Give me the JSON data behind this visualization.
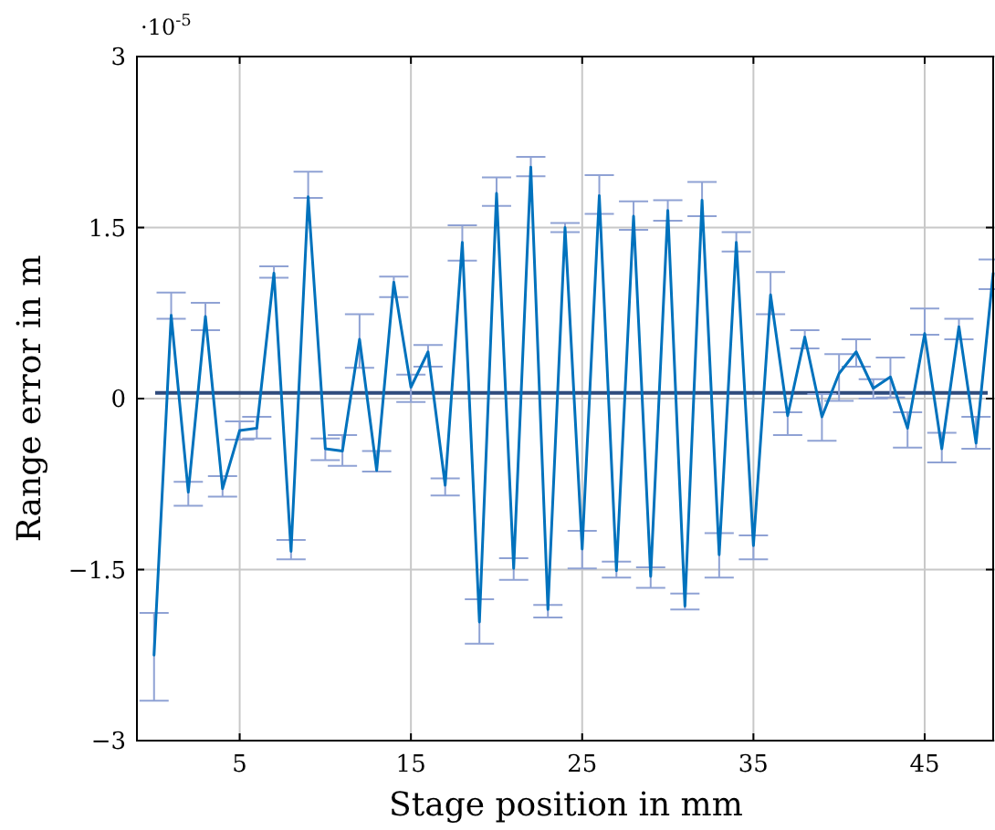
{
  "chart_data": {
    "type": "line",
    "xlabel": "Stage position in mm",
    "ylabel": "Range error in m",
    "annotations": [
      "·10$^{-5}$"
    ],
    "x": [
      0,
      1,
      2,
      3,
      4,
      5,
      6,
      7,
      8,
      9,
      10,
      11,
      12,
      13,
      14,
      15,
      16,
      17,
      18,
      19,
      20,
      21,
      22,
      23,
      24,
      25,
      26,
      27,
      28,
      29,
      30,
      31,
      32,
      33,
      34,
      35,
      36,
      37,
      38,
      39,
      40,
      41,
      42,
      43,
      44,
      45,
      46,
      47,
      48,
      49
    ],
    "series": [
      {
        "color": "#0072bd",
        "values": [
          -2.25,
          0.73,
          -0.82,
          0.72,
          -0.79,
          -0.28,
          -0.26,
          1.1,
          -1.34,
          1.77,
          -0.44,
          -0.46,
          0.52,
          -0.63,
          1.02,
          0.1,
          0.41,
          -0.76,
          1.37,
          -1.96,
          1.8,
          -1.49,
          2.03,
          -1.85,
          1.5,
          -1.32,
          1.78,
          -1.51,
          1.6,
          -1.56,
          1.65,
          -1.82,
          1.74,
          -1.37,
          1.37,
          -1.29,
          0.91,
          -0.15,
          0.54,
          -0.16,
          0.22,
          0.41,
          0.09,
          0.19,
          -0.26,
          0.57,
          -0.44,
          0.63,
          -0.39,
          1.1
        ],
        "errors": [
          [
            -2.65,
            -1.88
          ],
          [
            0.7,
            0.93
          ],
          [
            -0.94,
            -0.73
          ],
          [
            0.6,
            0.84
          ],
          [
            -0.86,
            -0.68
          ],
          [
            -0.36,
            -0.2
          ],
          [
            -0.35,
            -0.16
          ],
          [
            1.06,
            1.16
          ],
          [
            -1.41,
            -1.24
          ],
          [
            1.76,
            1.99
          ],
          [
            -0.54,
            -0.35
          ],
          [
            -0.59,
            -0.32
          ],
          [
            0.27,
            0.74
          ],
          [
            -0.64,
            -0.46
          ],
          [
            0.89,
            1.07
          ],
          [
            -0.03,
            0.21
          ],
          [
            0.28,
            0.47
          ],
          [
            -0.85,
            -0.7
          ],
          [
            1.21,
            1.52
          ],
          [
            -2.15,
            -1.76
          ],
          [
            1.69,
            1.94
          ],
          [
            -1.59,
            -1.4
          ],
          [
            1.95,
            2.12
          ],
          [
            -1.92,
            -1.81
          ],
          [
            1.46,
            1.54
          ],
          [
            -1.49,
            -1.16
          ],
          [
            1.62,
            1.96
          ],
          [
            -1.57,
            -1.43
          ],
          [
            1.48,
            1.73
          ],
          [
            -1.66,
            -1.48
          ],
          [
            1.56,
            1.74
          ],
          [
            -1.85,
            -1.71
          ],
          [
            1.6,
            1.9
          ],
          [
            -1.57,
            -1.18
          ],
          [
            1.29,
            1.46
          ],
          [
            -1.41,
            -1.2
          ],
          [
            0.74,
            1.11
          ],
          [
            -0.32,
            -0.12
          ],
          [
            0.44,
            0.6
          ],
          [
            -0.37,
            0.04
          ],
          [
            -0.02,
            0.39
          ],
          [
            0.28,
            0.52
          ],
          [
            0,
            0.17
          ],
          [
            0.01,
            0.36
          ],
          [
            -0.43,
            -0.12
          ],
          [
            0.56,
            0.79
          ],
          [
            -0.56,
            -0.3
          ],
          [
            0.52,
            0.7
          ],
          [
            -0.44,
            -0.16
          ],
          [
            0.96,
            1.22
          ]
        ]
      }
    ],
    "ref_lines": [
      {
        "axis": "y",
        "value": 0.05,
        "color": "#2f4b7c"
      }
    ],
    "xlim": [
      -1,
      49
    ],
    "xticks": [
      5,
      15,
      25,
      35,
      45
    ],
    "ylim": [
      -3,
      3
    ],
    "yticks": [
      {
        "value": -3,
        "label": "−3"
      },
      {
        "value": -1.5,
        "label": "−1.5"
      },
      0,
      1.5,
      3
    ],
    "grid": true,
    "marker": "none",
    "line_style": "solid"
  }
}
